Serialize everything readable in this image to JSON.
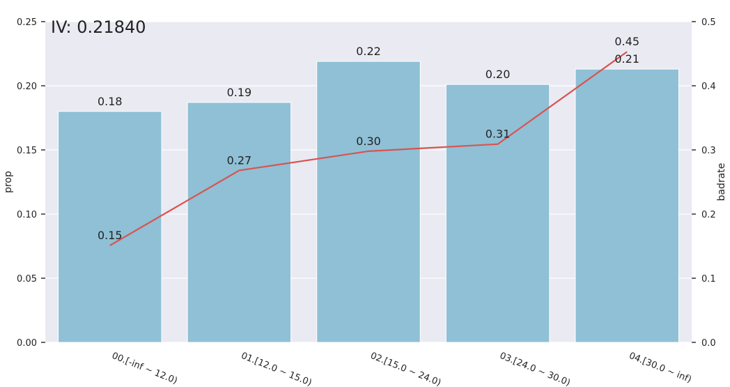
{
  "chart_data": {
    "type": "bar",
    "title": "IV: 0.21840",
    "categories": [
      "00.[-inf ~ 12.0)",
      "01.[12.0 ~ 15.0)",
      "02.[15.0 ~ 24.0)",
      "03.[24.0 ~ 30.0)",
      "04.[30.0 ~ inf)"
    ],
    "series": [
      {
        "name": "prop",
        "type": "bar",
        "axis": "left",
        "values": [
          0.18,
          0.187,
          0.219,
          0.201,
          0.213
        ],
        "labels": [
          "0.18",
          "0.19",
          "0.22",
          "0.20",
          "0.21"
        ]
      },
      {
        "name": "badrate",
        "type": "line",
        "axis": "right",
        "values": [
          0.151,
          0.268,
          0.298,
          0.309,
          0.453
        ],
        "labels": [
          "0.15",
          "0.27",
          "0.30",
          "0.31",
          "0.45"
        ]
      }
    ],
    "ylabel": "prop",
    "y2label": "badrate",
    "ylim": [
      0,
      0.25
    ],
    "y2lim": [
      0,
      0.5
    ],
    "yticks": [
      "0.00",
      "0.05",
      "0.10",
      "0.15",
      "0.20",
      "0.25"
    ],
    "y2ticks": [
      "0.0",
      "0.1",
      "0.2",
      "0.3",
      "0.4",
      "0.5"
    ],
    "grid": true,
    "colors": {
      "bar": "#8fc0d6",
      "line": "#d9534f",
      "plot_background": "#eaeaf2",
      "grid": "#ffffff"
    }
  }
}
